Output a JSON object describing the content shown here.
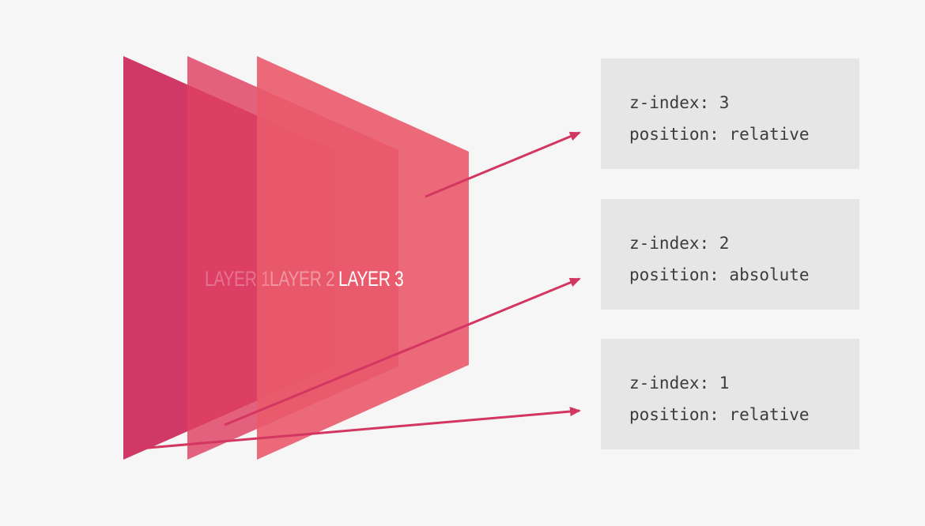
{
  "layers": [
    {
      "label": "LAYER 1",
      "color": "#cd2e5e"
    },
    {
      "label": "LAYER 2",
      "color": "#dc3d61"
    },
    {
      "label": "LAYER 3",
      "color": "#e75466"
    }
  ],
  "boxes": [
    {
      "z_index_line": "z-index: 3",
      "position_line": "position: relative"
    },
    {
      "z_index_line": "z-index: 2",
      "position_line": "position: absolute"
    },
    {
      "z_index_line": "z-index: 1",
      "position_line": "position: relative"
    }
  ],
  "arrow_color": "#d33660",
  "background_color": "#f6f6f6"
}
